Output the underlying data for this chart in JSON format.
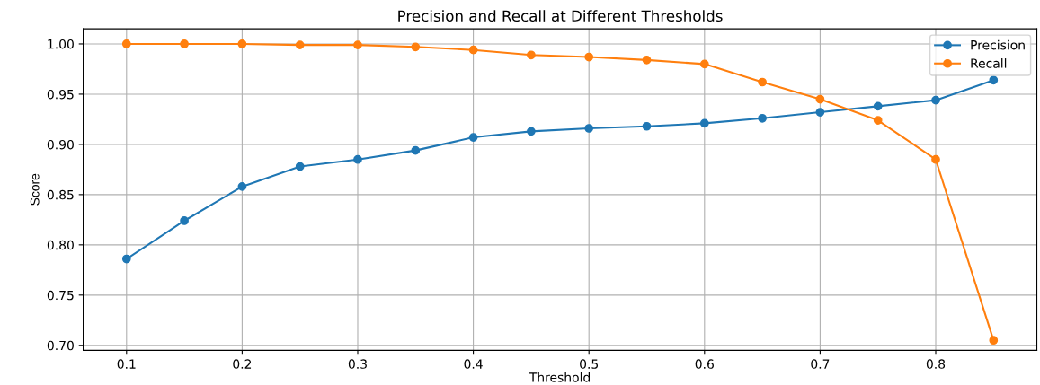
{
  "chart_data": {
    "type": "line",
    "title": "Precision and Recall at Different Thresholds",
    "xlabel": "Threshold",
    "ylabel": "Score",
    "x": [
      0.1,
      0.15,
      0.2,
      0.25,
      0.3,
      0.35,
      0.4,
      0.45,
      0.5,
      0.55,
      0.6,
      0.65,
      0.7,
      0.75,
      0.8,
      0.85
    ],
    "series": [
      {
        "name": "Precision",
        "color": "#1f77b4",
        "values": [
          0.786,
          0.824,
          0.858,
          0.878,
          0.885,
          0.894,
          0.907,
          0.913,
          0.916,
          0.918,
          0.921,
          0.926,
          0.932,
          0.938,
          0.944,
          0.964
        ]
      },
      {
        "name": "Recall",
        "color": "#ff7f0e",
        "values": [
          1.0,
          1.0,
          1.0,
          0.999,
          0.999,
          0.997,
          0.994,
          0.989,
          0.987,
          0.984,
          0.98,
          0.962,
          0.945,
          0.924,
          0.885,
          0.705
        ]
      }
    ],
    "xlim": [
      0.0625,
      0.8875
    ],
    "ylim": [
      0.695,
      1.015
    ],
    "xticks": [
      0.1,
      0.2,
      0.3,
      0.4,
      0.5,
      0.6,
      0.7,
      0.8
    ],
    "yticks": [
      {
        "value": 0.7,
        "label": "0.70"
      },
      {
        "value": 0.75,
        "label": "0.75"
      },
      {
        "value": 0.8,
        "label": "0.80"
      },
      {
        "value": 0.85,
        "label": "0.85"
      },
      {
        "value": 0.9,
        "label": "0.90"
      },
      {
        "value": 0.95,
        "label": "0.95"
      },
      {
        "value": 1.0,
        "label": "1.00"
      }
    ],
    "grid": true,
    "legend": "top right",
    "marker": "circle",
    "line_style": "solid"
  }
}
